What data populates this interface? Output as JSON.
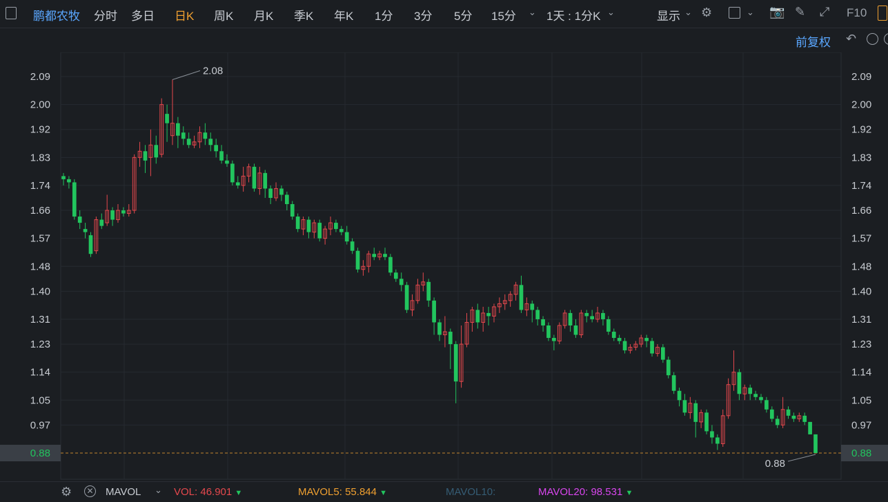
{
  "toolbar": {
    "stock_name": "鹏都农牧",
    "periods": [
      "分时",
      "多日",
      "日K",
      "周K",
      "月K",
      "季K",
      "年K",
      "1分",
      "3分",
      "5分",
      "15分"
    ],
    "active_period": "日K",
    "range_label": "1天 : 1分K",
    "display_label": "显示",
    "f10_label": "F10"
  },
  "adjust_label": "前复权",
  "colors": {
    "up": "#e5484d",
    "down": "#22c55e",
    "accent": "#f0a030",
    "blue": "#5aa7ff"
  },
  "chart_data": {
    "type": "candlestick",
    "ylim": [
      0.83,
      2.17
    ],
    "y_ticks": [
      2.09,
      2.0,
      1.92,
      1.83,
      1.74,
      1.66,
      1.57,
      1.48,
      1.4,
      1.31,
      1.23,
      1.14,
      1.05,
      0.97
    ],
    "y_tick_labels": [
      "2.09",
      "2.00",
      "1.92",
      "1.83",
      "1.74",
      "1.66",
      "1.57",
      "1.48",
      "1.40",
      "1.31",
      "1.23",
      "1.14",
      "1.05",
      "0.97"
    ],
    "last_price_label": "0.88",
    "last_price": 0.88,
    "max_label": "2.08",
    "max_value": 2.08,
    "min_label": "0.88",
    "min_value": 0.88,
    "candles": [
      [
        1.77,
        1.76,
        1.78,
        1.74
      ],
      [
        1.76,
        1.75,
        1.77,
        1.73
      ],
      [
        1.75,
        1.64,
        1.76,
        1.63
      ],
      [
        1.64,
        1.62,
        1.66,
        1.6
      ],
      [
        1.6,
        1.59,
        1.62,
        1.57
      ],
      [
        1.58,
        1.52,
        1.59,
        1.51
      ],
      [
        1.53,
        1.63,
        1.64,
        1.52
      ],
      [
        1.63,
        1.61,
        1.65,
        1.6
      ],
      [
        1.62,
        1.66,
        1.71,
        1.61
      ],
      [
        1.66,
        1.63,
        1.67,
        1.61
      ],
      [
        1.63,
        1.66,
        1.68,
        1.62
      ],
      [
        1.66,
        1.65,
        1.67,
        1.64
      ],
      [
        1.65,
        1.66,
        1.68,
        1.64
      ],
      [
        1.66,
        1.83,
        1.84,
        1.65
      ],
      [
        1.83,
        1.85,
        1.88,
        1.8
      ],
      [
        1.85,
        1.82,
        1.87,
        1.78
      ],
      [
        1.83,
        1.87,
        1.92,
        1.77
      ],
      [
        1.87,
        1.83,
        1.9,
        1.81
      ],
      [
        1.84,
        2.0,
        2.02,
        1.83
      ],
      [
        1.97,
        1.94,
        2.0,
        1.88
      ],
      [
        1.9,
        1.94,
        2.08,
        1.87
      ],
      [
        1.94,
        1.9,
        1.96,
        1.86
      ],
      [
        1.91,
        1.89,
        1.93,
        1.87
      ],
      [
        1.89,
        1.87,
        1.91,
        1.86
      ],
      [
        1.87,
        1.88,
        1.9,
        1.86
      ],
      [
        1.88,
        1.91,
        1.93,
        1.86
      ],
      [
        1.91,
        1.89,
        1.94,
        1.87
      ],
      [
        1.89,
        1.87,
        1.91,
        1.85
      ],
      [
        1.87,
        1.85,
        1.89,
        1.83
      ],
      [
        1.85,
        1.82,
        1.87,
        1.81
      ],
      [
        1.82,
        1.81,
        1.84,
        1.8
      ],
      [
        1.81,
        1.75,
        1.82,
        1.74
      ],
      [
        1.75,
        1.74,
        1.77,
        1.73
      ],
      [
        1.74,
        1.77,
        1.8,
        1.72
      ],
      [
        1.77,
        1.8,
        1.81,
        1.75
      ],
      [
        1.8,
        1.73,
        1.81,
        1.72
      ],
      [
        1.73,
        1.78,
        1.8,
        1.71
      ],
      [
        1.78,
        1.73,
        1.79,
        1.7
      ],
      [
        1.73,
        1.7,
        1.74,
        1.68
      ],
      [
        1.7,
        1.73,
        1.75,
        1.69
      ],
      [
        1.73,
        1.71,
        1.74,
        1.69
      ],
      [
        1.71,
        1.68,
        1.72,
        1.66
      ],
      [
        1.68,
        1.64,
        1.69,
        1.63
      ],
      [
        1.64,
        1.6,
        1.65,
        1.59
      ],
      [
        1.6,
        1.63,
        1.64,
        1.58
      ],
      [
        1.63,
        1.59,
        1.64,
        1.57
      ],
      [
        1.59,
        1.62,
        1.63,
        1.57
      ],
      [
        1.62,
        1.57,
        1.63,
        1.56
      ],
      [
        1.57,
        1.6,
        1.61,
        1.55
      ],
      [
        1.6,
        1.62,
        1.64,
        1.58
      ],
      [
        1.62,
        1.6,
        1.63,
        1.59
      ],
      [
        1.6,
        1.59,
        1.61,
        1.58
      ],
      [
        1.59,
        1.56,
        1.61,
        1.55
      ],
      [
        1.56,
        1.53,
        1.57,
        1.52
      ],
      [
        1.53,
        1.47,
        1.54,
        1.46
      ],
      [
        1.47,
        1.48,
        1.5,
        1.45
      ],
      [
        1.48,
        1.52,
        1.53,
        1.46
      ],
      [
        1.52,
        1.51,
        1.54,
        1.5
      ],
      [
        1.51,
        1.52,
        1.53,
        1.5
      ],
      [
        1.52,
        1.51,
        1.54,
        1.5
      ],
      [
        1.51,
        1.46,
        1.52,
        1.45
      ],
      [
        1.46,
        1.44,
        1.47,
        1.43
      ],
      [
        1.44,
        1.42,
        1.46,
        1.4
      ],
      [
        1.42,
        1.34,
        1.43,
        1.33
      ],
      [
        1.34,
        1.37,
        1.39,
        1.32
      ],
      [
        1.37,
        1.42,
        1.44,
        1.36
      ],
      [
        1.42,
        1.43,
        1.46,
        1.4
      ],
      [
        1.43,
        1.37,
        1.44,
        1.35
      ],
      [
        1.37,
        1.3,
        1.38,
        1.26
      ],
      [
        1.3,
        1.26,
        1.31,
        1.24
      ],
      [
        1.26,
        1.27,
        1.32,
        1.22
      ],
      [
        1.27,
        1.23,
        1.28,
        1.15
      ],
      [
        1.23,
        1.11,
        1.24,
        1.04
      ],
      [
        1.11,
        1.23,
        1.29,
        1.09
      ],
      [
        1.23,
        1.3,
        1.33,
        1.22
      ],
      [
        1.3,
        1.34,
        1.35,
        1.27
      ],
      [
        1.34,
        1.3,
        1.36,
        1.28
      ],
      [
        1.3,
        1.33,
        1.35,
        1.27
      ],
      [
        1.33,
        1.32,
        1.35,
        1.29
      ],
      [
        1.32,
        1.35,
        1.36,
        1.3
      ],
      [
        1.35,
        1.36,
        1.38,
        1.33
      ],
      [
        1.36,
        1.37,
        1.39,
        1.34
      ],
      [
        1.37,
        1.39,
        1.4,
        1.35
      ],
      [
        1.39,
        1.42,
        1.43,
        1.37
      ],
      [
        1.42,
        1.34,
        1.45,
        1.33
      ],
      [
        1.34,
        1.36,
        1.38,
        1.32
      ],
      [
        1.36,
        1.34,
        1.37,
        1.3
      ],
      [
        1.34,
        1.31,
        1.35,
        1.29
      ],
      [
        1.31,
        1.29,
        1.32,
        1.27
      ],
      [
        1.29,
        1.25,
        1.3,
        1.24
      ],
      [
        1.25,
        1.24,
        1.26,
        1.21
      ],
      [
        1.24,
        1.29,
        1.3,
        1.23
      ],
      [
        1.29,
        1.33,
        1.34,
        1.28
      ],
      [
        1.33,
        1.29,
        1.34,
        1.27
      ],
      [
        1.29,
        1.26,
        1.31,
        1.25
      ],
      [
        1.26,
        1.33,
        1.34,
        1.25
      ],
      [
        1.33,
        1.32,
        1.34,
        1.3
      ],
      [
        1.32,
        1.31,
        1.34,
        1.3
      ],
      [
        1.31,
        1.33,
        1.35,
        1.3
      ],
      [
        1.33,
        1.31,
        1.34,
        1.29
      ],
      [
        1.31,
        1.27,
        1.32,
        1.26
      ],
      [
        1.27,
        1.25,
        1.28,
        1.24
      ],
      [
        1.25,
        1.24,
        1.26,
        1.23
      ],
      [
        1.24,
        1.21,
        1.25,
        1.2
      ],
      [
        1.21,
        1.22,
        1.23,
        1.2
      ],
      [
        1.22,
        1.23,
        1.24,
        1.21
      ],
      [
        1.23,
        1.25,
        1.26,
        1.22
      ],
      [
        1.25,
        1.24,
        1.26,
        1.22
      ],
      [
        1.24,
        1.2,
        1.25,
        1.19
      ],
      [
        1.2,
        1.22,
        1.23,
        1.19
      ],
      [
        1.22,
        1.18,
        1.23,
        1.17
      ],
      [
        1.18,
        1.13,
        1.19,
        1.12
      ],
      [
        1.13,
        1.08,
        1.14,
        1.07
      ],
      [
        1.08,
        1.05,
        1.09,
        1.03
      ],
      [
        1.05,
        1.01,
        1.07,
        1.0
      ],
      [
        1.01,
        1.04,
        1.06,
        0.99
      ],
      [
        1.04,
        0.98,
        1.05,
        0.93
      ],
      [
        0.98,
        1.01,
        1.02,
        0.96
      ],
      [
        1.01,
        0.95,
        1.02,
        0.94
      ],
      [
        0.95,
        0.93,
        0.97,
        0.91
      ],
      [
        0.93,
        0.91,
        0.94,
        0.89
      ],
      [
        0.91,
        1.0,
        1.02,
        0.9
      ],
      [
        1.0,
        1.1,
        1.12,
        0.99
      ],
      [
        1.1,
        1.14,
        1.21,
        1.08
      ],
      [
        1.14,
        1.07,
        1.15,
        1.05
      ],
      [
        1.07,
        1.09,
        1.1,
        1.05
      ],
      [
        1.09,
        1.07,
        1.1,
        1.05
      ],
      [
        1.07,
        1.06,
        1.08,
        1.05
      ],
      [
        1.06,
        1.05,
        1.07,
        1.04
      ],
      [
        1.05,
        1.02,
        1.06,
        1.01
      ],
      [
        1.02,
        0.99,
        1.03,
        0.98
      ],
      [
        0.99,
        0.97,
        1.0,
        0.96
      ],
      [
        0.97,
        1.02,
        1.06,
        0.96
      ],
      [
        1.02,
        1.0,
        1.03,
        0.99
      ],
      [
        1.0,
        0.99,
        1.01,
        0.98
      ],
      [
        0.99,
        1.0,
        1.01,
        0.98
      ],
      [
        1.0,
        0.98,
        1.01,
        0.97
      ],
      [
        0.98,
        0.94,
        0.98,
        0.94
      ],
      [
        0.94,
        0.88,
        0.94,
        0.88
      ]
    ]
  },
  "indicators": {
    "mavol_label": "MAVOL",
    "vol_label": "VOL:",
    "vol_value": "46.901",
    "mavol5_label": "MAVOL5:",
    "mavol5_value": "55.844",
    "mavol10_label": "MAVOL10:",
    "mavol20_label": "MAVOL20:",
    "mavol20_value": "98.531"
  }
}
